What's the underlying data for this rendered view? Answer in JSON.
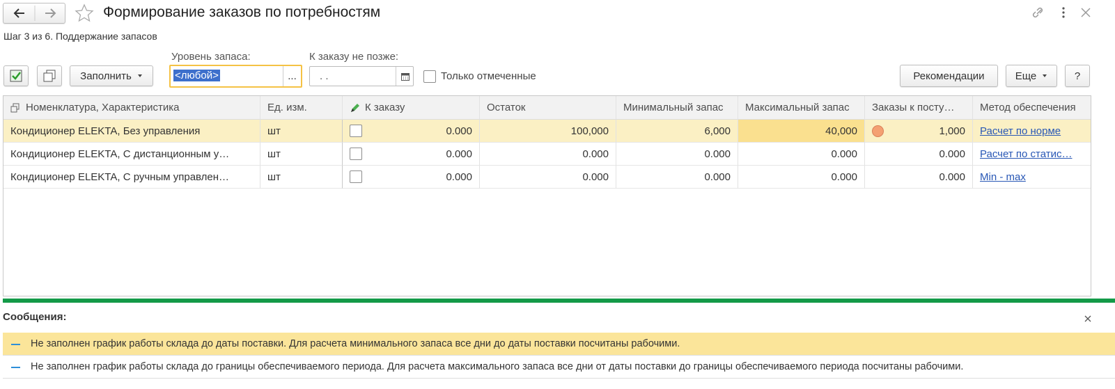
{
  "header": {
    "title": "Формирование заказов по потребностям",
    "step": "Шаг 3 из 6. Поддержание запасов"
  },
  "toolbar": {
    "fill_button": "Заполнить",
    "stock_level_label": "Уровень запаса:",
    "stock_level_value": "<любой>",
    "ellipsis": "...",
    "order_by_label": "К заказу не позже:",
    "date_value": ".  .",
    "only_marked": "Только отмеченные",
    "recommendations": "Рекомендации",
    "more": "Еще",
    "help": "?"
  },
  "table": {
    "columns": [
      "Номенклатура, Характеристика",
      "Ед. изм.",
      "К заказу",
      "Остаток",
      "Минимальный запас",
      "Максимальный запас",
      "Заказы к посту…",
      "Метод обеспечения"
    ],
    "rows": [
      [
        "Кондиционер ELEKTA, Без управления",
        "шт",
        "0.000",
        "100,000",
        "6,000",
        "40,000",
        "1,000",
        "Расчет по норме"
      ],
      [
        "Кондиционер ELEKTA, С дистанционным у…",
        "шт",
        "0.000",
        "0.000",
        "0.000",
        "0.000",
        "0.000",
        "Расчет по статис…"
      ],
      [
        "Кондиционер ELEKTA, С ручным управлен…",
        "шт",
        "0.000",
        "0.000",
        "0.000",
        "0.000",
        "0.000",
        "Min - max"
      ]
    ]
  },
  "messages": {
    "title": "Сообщения:",
    "items": [
      "Не заполнен график работы склада до даты поставки. Для расчета минимального запаса все дни до даты поставки посчитаны рабочими.",
      "Не заполнен график работы склада до границы обеспечиваемого периода. Для расчета максимального запаса все дни от даты поставки до границы обеспечиваемого периода посчитаны рабочими."
    ]
  }
}
